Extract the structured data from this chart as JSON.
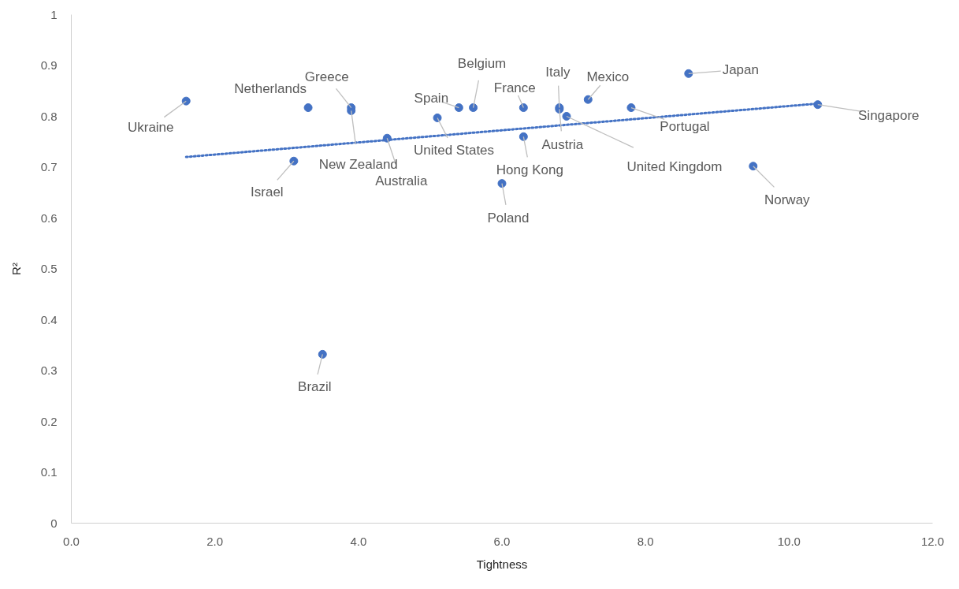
{
  "chart_data": {
    "type": "scatter",
    "xlabel": "Tightness",
    "ylabel": "R²",
    "xlim": [
      0,
      12
    ],
    "ylim": [
      0,
      1
    ],
    "xticks": [
      {
        "value": 0,
        "label": "0.0"
      },
      {
        "value": 2,
        "label": "2.0"
      },
      {
        "value": 4,
        "label": "4.0"
      },
      {
        "value": 6,
        "label": "6.0"
      },
      {
        "value": 8,
        "label": "8.0"
      },
      {
        "value": 10,
        "label": "10.0"
      },
      {
        "value": 12,
        "label": "12.0"
      }
    ],
    "yticks": [
      0,
      0.1,
      0.2,
      0.3,
      0.4,
      0.5,
      0.6,
      0.7,
      0.8,
      0.9,
      1
    ],
    "grid": false,
    "series": [
      {
        "marker": "circle",
        "color": "#4472c4",
        "x": [
          1.6,
          3.3,
          3.9,
          3.9,
          3.1,
          3.5,
          4.4,
          5.1,
          5.4,
          5.6,
          6.0,
          6.3,
          6.3,
          6.8,
          6.8,
          7.2,
          7.8,
          8.6,
          9.5,
          10.4,
          6.9
        ],
        "values": [
          0.83,
          0.817,
          0.817,
          0.811,
          0.712,
          0.332,
          0.757,
          0.797,
          0.817,
          0.817,
          0.668,
          0.817,
          0.76,
          0.817,
          0.814,
          0.833,
          0.817,
          0.884,
          0.702,
          0.823,
          0.8
        ]
      },
      {
        "type": "line",
        "color": "#4472c4",
        "line_style": "dotted",
        "x": [
          1.6,
          10.4
        ],
        "values": [
          0.72,
          0.825
        ]
      }
    ],
    "annotations": [
      {
        "text": "Ukraine",
        "x": 1.6,
        "y": 0.83
      },
      {
        "text": "Netherlands",
        "x": 3.3,
        "y": 0.817
      },
      {
        "text": "Greece",
        "x": 3.9,
        "y": 0.817
      },
      {
        "text": "New Zealand",
        "x": 3.9,
        "y": 0.811
      },
      {
        "text": "Israel",
        "x": 3.1,
        "y": 0.712
      },
      {
        "text": "Brazil",
        "x": 3.5,
        "y": 0.332
      },
      {
        "text": "Australia",
        "x": 4.4,
        "y": 0.757
      },
      {
        "text": "United States",
        "x": 5.1,
        "y": 0.797
      },
      {
        "text": "Spain",
        "x": 5.4,
        "y": 0.817
      },
      {
        "text": "Belgium",
        "x": 5.6,
        "y": 0.817
      },
      {
        "text": "Poland",
        "x": 6.0,
        "y": 0.668
      },
      {
        "text": "France",
        "x": 6.3,
        "y": 0.817
      },
      {
        "text": "Hong Kong",
        "x": 6.3,
        "y": 0.76
      },
      {
        "text": "Italy",
        "x": 6.8,
        "y": 0.817
      },
      {
        "text": "Austria",
        "x": 6.8,
        "y": 0.814
      },
      {
        "text": "Mexico",
        "x": 7.2,
        "y": 0.833
      },
      {
        "text": "Portugal",
        "x": 7.8,
        "y": 0.817
      },
      {
        "text": "Japan",
        "x": 8.6,
        "y": 0.884
      },
      {
        "text": "Norway",
        "x": 9.5,
        "y": 0.702
      },
      {
        "text": "Singapore",
        "x": 10.4,
        "y": 0.823
      },
      {
        "text": "United Kingdom",
        "x": 6.9,
        "y": 0.8
      }
    ]
  }
}
